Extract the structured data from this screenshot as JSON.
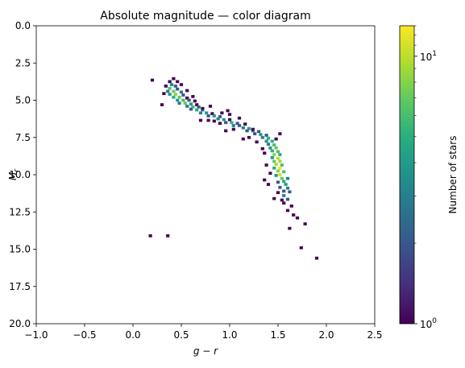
{
  "chart_data": {
    "type": "heatmap",
    "title": "Absolute magnitude — color diagram",
    "xlabel": "g − r",
    "ylabel": "M",
    "ylabel_sub": "r",
    "xlim": [
      -1.0,
      2.5
    ],
    "ylim": [
      20.0,
      0.0
    ],
    "y_inverted": true,
    "x_ticks": [
      -1.0,
      -0.5,
      0.0,
      0.5,
      1.0,
      1.5,
      2.0,
      2.5
    ],
    "x_tick_labels": [
      "−1.0",
      "−0.5",
      "0.0",
      "0.5",
      "1.0",
      "1.5",
      "2.0",
      "2.5"
    ],
    "y_ticks": [
      0.0,
      2.5,
      5.0,
      7.5,
      10.0,
      12.5,
      15.0,
      17.5,
      20.0
    ],
    "y_tick_labels": [
      "0.0",
      "2.5",
      "5.0",
      "7.5",
      "10.0",
      "12.5",
      "15.0",
      "17.5",
      "20.0"
    ],
    "grid": false,
    "colormap": "viridis",
    "colorbar": {
      "label": "Number of stars",
      "scale": "log",
      "range": [
        1,
        13
      ],
      "tick_labels": [
        {
          "value": 1,
          "base": "10",
          "exp": "0"
        },
        {
          "value": 10,
          "base": "10",
          "exp": "1"
        }
      ]
    },
    "bin_size": [
      0.035,
      0.2
    ],
    "bins": [
      [
        0.38,
        3.75,
        1
      ],
      [
        0.46,
        3.75,
        1
      ],
      [
        0.4,
        3.95,
        3
      ],
      [
        0.34,
        4.05,
        1
      ],
      [
        0.44,
        4.05,
        2
      ],
      [
        0.38,
        4.2,
        6
      ],
      [
        0.46,
        4.25,
        2
      ],
      [
        0.36,
        4.4,
        3
      ],
      [
        0.42,
        4.4,
        7
      ],
      [
        0.5,
        4.45,
        3
      ],
      [
        0.38,
        4.6,
        4
      ],
      [
        0.44,
        4.6,
        8
      ],
      [
        0.52,
        4.65,
        2
      ],
      [
        0.42,
        4.8,
        5
      ],
      [
        0.48,
        4.8,
        7
      ],
      [
        0.56,
        4.85,
        1
      ],
      [
        0.46,
        5.0,
        4
      ],
      [
        0.52,
        5.0,
        6
      ],
      [
        0.58,
        5.0,
        2
      ],
      [
        0.48,
        5.2,
        3
      ],
      [
        0.54,
        5.2,
        7
      ],
      [
        0.6,
        5.25,
        4
      ],
      [
        0.66,
        5.3,
        1
      ],
      [
        0.56,
        5.4,
        3
      ],
      [
        0.62,
        5.45,
        6
      ],
      [
        0.68,
        5.45,
        2
      ],
      [
        0.6,
        5.6,
        2
      ],
      [
        0.66,
        5.65,
        5
      ],
      [
        0.72,
        5.65,
        3
      ],
      [
        0.7,
        5.85,
        3
      ],
      [
        0.76,
        5.85,
        4
      ],
      [
        0.82,
        5.9,
        1
      ],
      [
        0.78,
        6.05,
        2
      ],
      [
        0.84,
        6.05,
        4
      ],
      [
        0.9,
        6.1,
        2
      ],
      [
        0.88,
        6.25,
        3
      ],
      [
        0.94,
        6.3,
        4
      ],
      [
        1.0,
        6.3,
        1
      ],
      [
        0.96,
        6.5,
        2
      ],
      [
        1.02,
        6.5,
        5
      ],
      [
        0.9,
        6.55,
        1
      ],
      [
        1.08,
        6.55,
        2
      ],
      [
        1.04,
        6.7,
        3
      ],
      [
        1.1,
        6.7,
        2
      ],
      [
        1.14,
        6.85,
        3
      ],
      [
        1.2,
        6.9,
        4
      ],
      [
        1.18,
        7.05,
        2
      ],
      [
        1.24,
        7.05,
        3
      ],
      [
        1.3,
        7.1,
        2
      ],
      [
        1.26,
        7.25,
        2
      ],
      [
        1.32,
        7.3,
        4
      ],
      [
        1.38,
        7.35,
        2
      ],
      [
        1.34,
        7.5,
        3
      ],
      [
        1.4,
        7.55,
        5
      ],
      [
        1.38,
        7.75,
        4
      ],
      [
        1.44,
        7.75,
        5
      ],
      [
        1.4,
        7.95,
        3
      ],
      [
        1.46,
        8.0,
        6
      ],
      [
        1.42,
        8.2,
        4
      ],
      [
        1.48,
        8.2,
        7
      ],
      [
        1.44,
        8.4,
        5
      ],
      [
        1.5,
        8.45,
        6
      ],
      [
        1.46,
        8.65,
        8
      ],
      [
        1.52,
        8.65,
        5
      ],
      [
        1.44,
        8.85,
        4
      ],
      [
        1.5,
        8.9,
        10
      ],
      [
        1.46,
        9.1,
        7
      ],
      [
        1.52,
        9.1,
        9
      ],
      [
        1.48,
        9.3,
        9
      ],
      [
        1.54,
        9.35,
        6
      ],
      [
        1.46,
        9.55,
        5
      ],
      [
        1.52,
        9.55,
        12
      ],
      [
        1.5,
        9.75,
        8
      ],
      [
        1.56,
        9.8,
        6
      ],
      [
        1.52,
        10.0,
        11
      ],
      [
        1.48,
        10.05,
        4
      ],
      [
        1.54,
        10.25,
        7
      ],
      [
        1.6,
        10.25,
        3
      ],
      [
        1.56,
        10.45,
        5
      ],
      [
        1.5,
        10.5,
        2
      ],
      [
        1.58,
        10.65,
        4
      ],
      [
        1.52,
        10.85,
        2
      ],
      [
        1.6,
        10.9,
        3
      ],
      [
        1.56,
        11.1,
        2
      ],
      [
        1.62,
        11.15,
        2
      ],
      [
        1.56,
        11.4,
        3
      ],
      [
        1.6,
        11.65,
        2
      ],
      [
        1.56,
        11.9,
        1
      ],
      [
        1.64,
        12.1,
        1
      ],
      [
        1.6,
        12.4,
        1
      ],
      [
        1.66,
        12.7,
        1
      ],
      [
        1.7,
        12.9,
        1
      ],
      [
        1.78,
        13.3,
        1
      ],
      [
        1.62,
        13.6,
        1
      ],
      [
        0.2,
        3.65,
        1
      ],
      [
        0.32,
        4.55,
        1
      ],
      [
        0.3,
        5.3,
        1
      ],
      [
        0.64,
        5.05,
        1
      ],
      [
        0.72,
        5.55,
        1
      ],
      [
        0.7,
        6.35,
        1
      ],
      [
        0.84,
        6.4,
        1
      ],
      [
        0.8,
        5.4,
        1
      ],
      [
        0.98,
        5.7,
        1
      ],
      [
        1.1,
        6.2,
        1
      ],
      [
        0.96,
        7.05,
        1
      ],
      [
        1.04,
        6.95,
        1
      ],
      [
        1.2,
        7.5,
        1
      ],
      [
        1.28,
        7.8,
        1
      ],
      [
        1.14,
        7.6,
        1
      ],
      [
        1.36,
        8.55,
        1
      ],
      [
        1.34,
        8.25,
        1
      ],
      [
        1.38,
        9.35,
        1
      ],
      [
        1.42,
        9.9,
        1
      ],
      [
        1.4,
        10.65,
        1
      ],
      [
        1.5,
        11.2,
        1
      ],
      [
        0.56,
        4.35,
        1
      ],
      [
        0.62,
        4.75,
        1
      ],
      [
        0.5,
        3.95,
        1
      ],
      [
        0.42,
        3.55,
        1
      ],
      [
        0.78,
        6.35,
        1
      ],
      [
        0.92,
        5.85,
        1
      ],
      [
        1.0,
        5.95,
        1
      ],
      [
        1.16,
        6.6,
        1
      ],
      [
        1.24,
        6.95,
        1
      ],
      [
        1.52,
        7.25,
        1
      ],
      [
        1.48,
        7.6,
        1
      ],
      [
        1.36,
        10.35,
        1
      ],
      [
        1.46,
        11.6,
        1
      ],
      [
        1.54,
        11.7,
        1
      ],
      [
        0.18,
        14.1,
        1
      ],
      [
        0.36,
        14.1,
        1
      ],
      [
        1.74,
        14.9,
        1
      ],
      [
        1.9,
        15.6,
        1
      ]
    ]
  }
}
